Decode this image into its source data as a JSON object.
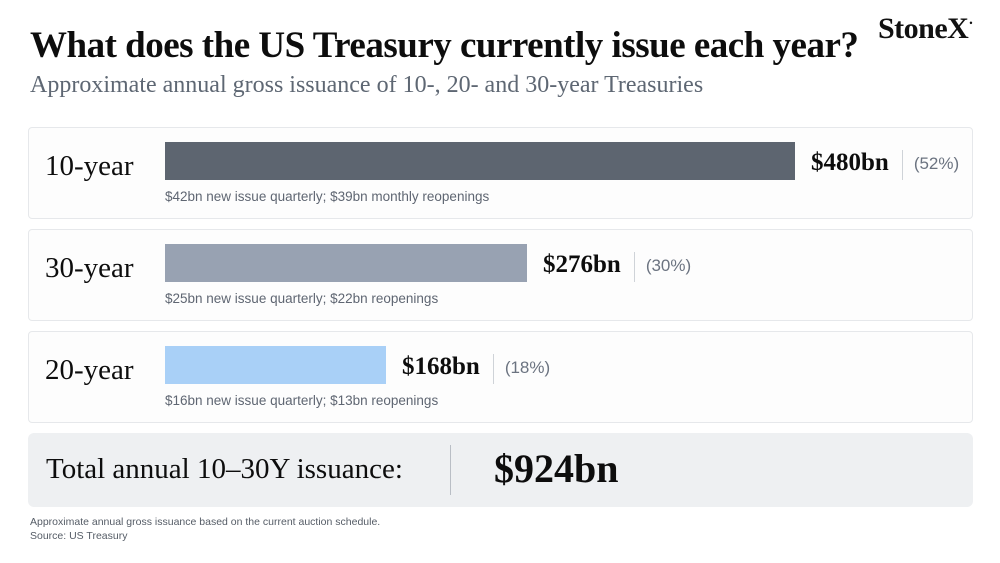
{
  "header": {
    "title": "What does the US Treasury currently issue each year?",
    "subtitle": "Approximate annual gross issuance of 10-, 20- and 30-year Treasuries",
    "logo_text": "StoneX",
    "logo_mark": "•"
  },
  "chart_data": {
    "type": "bar",
    "orientation": "horizontal",
    "unit": "$bn",
    "categories": [
      "10-year",
      "30-year",
      "20-year"
    ],
    "values": [
      480,
      276,
      168
    ],
    "value_labels": [
      "$480bn",
      "$276bn",
      "$168bn"
    ],
    "share_labels": [
      "(52%)",
      "(30%)",
      "(18%)"
    ],
    "notes": [
      "$42bn new issue quarterly; $39bn monthly reopenings",
      "$25bn new issue quarterly; $22bn reopenings",
      "$16bn new issue quarterly; $13bn reopenings"
    ],
    "colors": [
      "#5d6570",
      "#98a2b2",
      "#a9d0f7"
    ],
    "xlim": [
      0,
      480
    ]
  },
  "total": {
    "label": "Total annual 10–30Y issuance:",
    "value": "$924bn"
  },
  "footer": {
    "footnote": "Approximate annual gross issuance based on the current auction schedule.",
    "source": "Source: US Treasury"
  }
}
